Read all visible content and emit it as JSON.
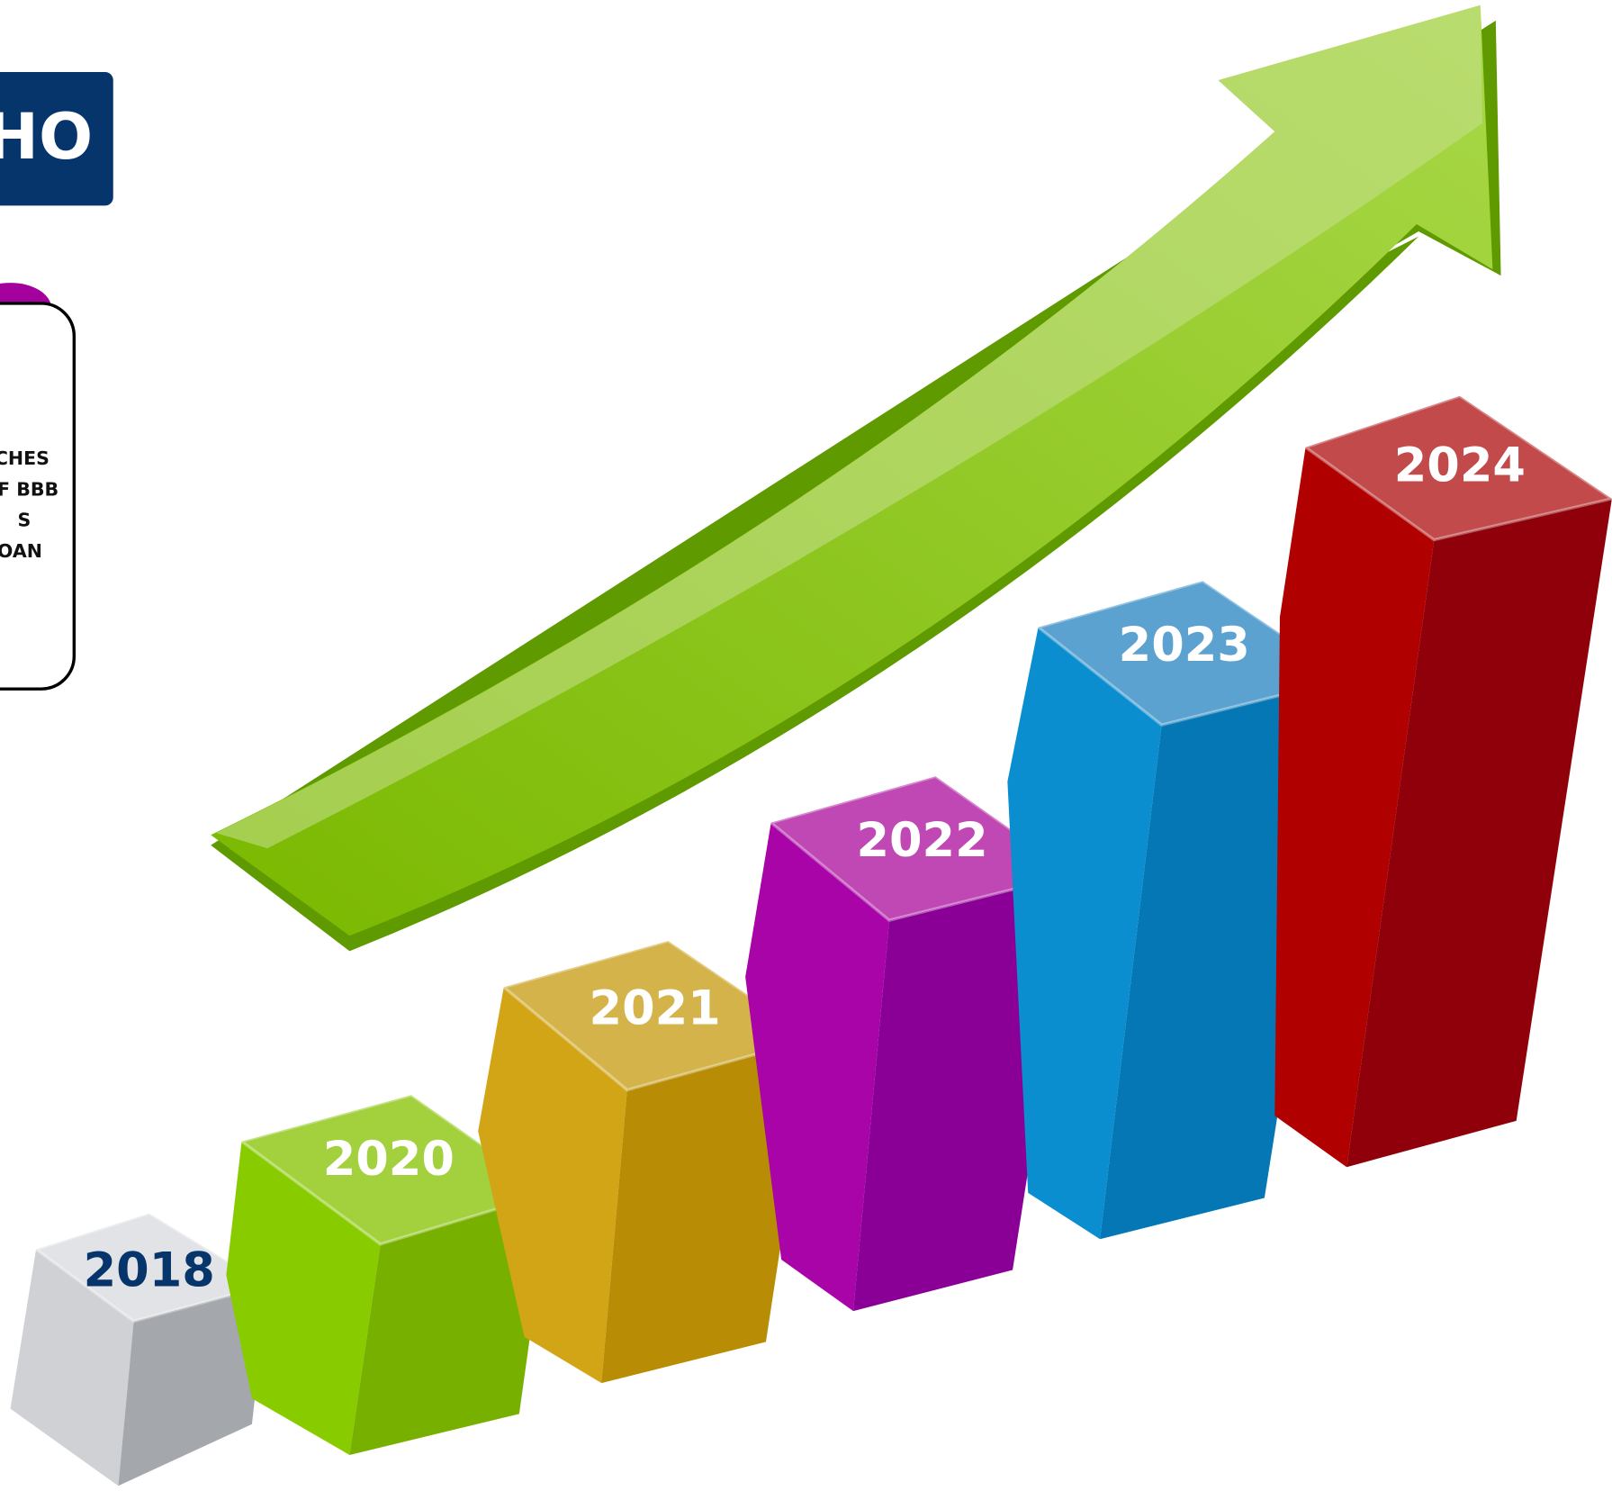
{
  "header": {
    "badge": "HO"
  },
  "note": {
    "lines": [
      "CHES",
      "F BBB",
      "S",
      "OAN"
    ]
  },
  "bars": {
    "labels": [
      "2018",
      "2020",
      "2021",
      "2022",
      "2023",
      "2024"
    ]
  }
}
